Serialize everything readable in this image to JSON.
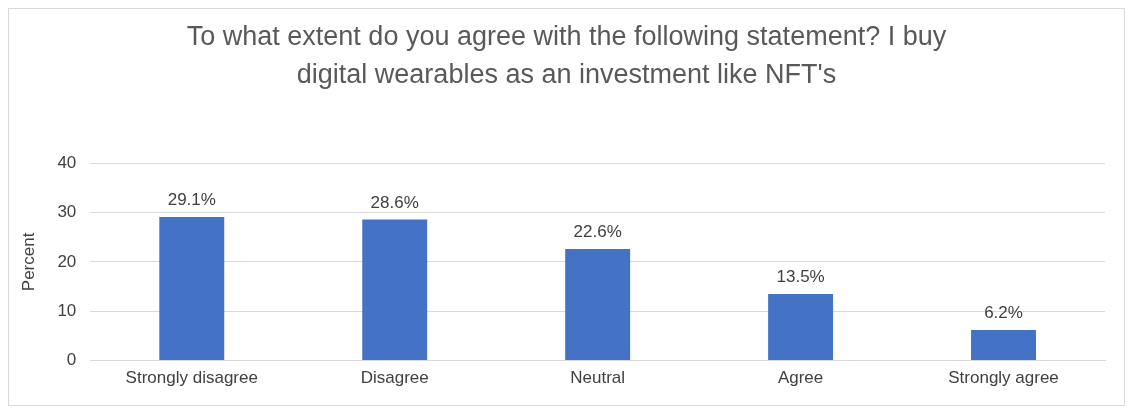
{
  "chart_data": {
    "type": "bar",
    "title": "To what extent do you agree with the following statement? I buy digital wearables as an investment like NFT's",
    "ylabel": "Percent",
    "categories": [
      "Strongly disagree",
      "Disagree",
      "Neutral",
      "Agree",
      "Strongly agree"
    ],
    "values": [
      29.1,
      28.6,
      22.6,
      13.5,
      6.2
    ],
    "value_labels": [
      "29.1%",
      "28.6%",
      "22.6%",
      "13.5%",
      "6.2%"
    ],
    "color": "#4472c4",
    "ylim": [
      0,
      40
    ],
    "yticks": [
      0,
      10,
      20,
      30,
      40
    ],
    "grid": "y",
    "legend": false
  }
}
